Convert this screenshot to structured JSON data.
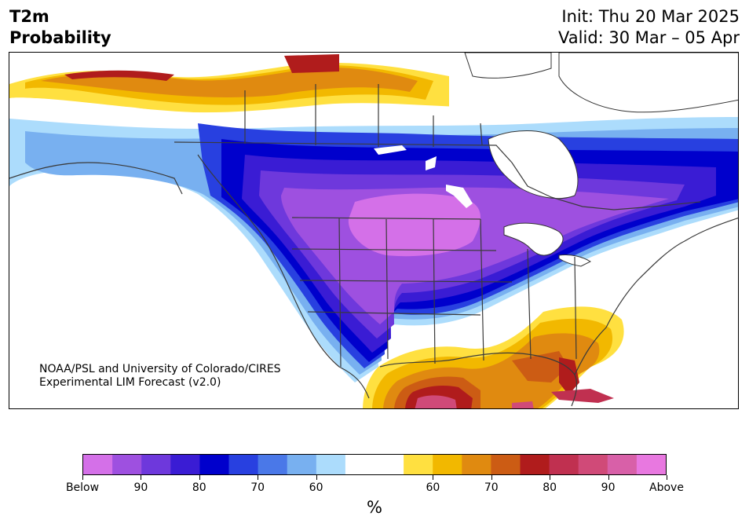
{
  "header": {
    "variable": "T2m",
    "product": "Probability",
    "init": "Init: Thu 20 Mar 2025",
    "valid": "Valid: 30 Mar – 05 Apr"
  },
  "credit": {
    "line1": "NOAA/PSL and University of Colorado/CIRES",
    "line2": "Experimental LIM Forecast (v2.0)"
  },
  "colorbar": {
    "colors": [
      "#d470e8",
      "#9e50e0",
      "#6e38dc",
      "#3a1cd4",
      "#0000cc",
      "#2840e0",
      "#4a78e8",
      "#78b0f0",
      "#acdcfc",
      "#ffffff",
      "#ffffff",
      "#ffe040",
      "#f2b800",
      "#e08a10",
      "#cc5c14",
      "#b01c1c",
      "#c03050",
      "#d04a78",
      "#d860a8",
      "#e878e0"
    ],
    "tick_labels": [
      "Below",
      "90",
      "80",
      "70",
      "60",
      "60",
      "70",
      "80",
      "90",
      "Above"
    ],
    "unit": "%"
  },
  "map": {
    "region": "North America",
    "cold_anomaly_center": "Northern Plains",
    "warm_anomaly_center": "Gulf Coast / Mexico"
  }
}
